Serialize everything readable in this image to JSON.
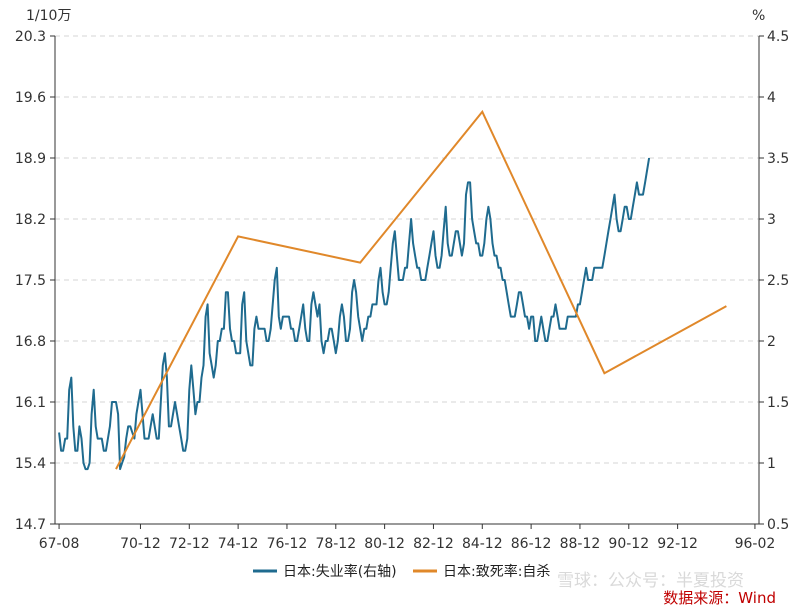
{
  "chart_data": {
    "type": "line",
    "units": {
      "left": "1/10万",
      "right": "%"
    },
    "x_tick_labels": [
      "67-08",
      "70-12",
      "72-12",
      "74-12",
      "76-12",
      "78-12",
      "80-12",
      "82-12",
      "84-12",
      "86-12",
      "88-12",
      "90-12",
      "92-12",
      "96-02"
    ],
    "x_tick_dates": [
      "1967-08",
      "1970-12",
      "1972-12",
      "1974-12",
      "1976-12",
      "1978-12",
      "1980-12",
      "1982-12",
      "1984-12",
      "1986-12",
      "1988-12",
      "1990-12",
      "1992-12",
      "1996-02"
    ],
    "xlim": [
      "1967-06",
      "1996-04"
    ],
    "left_axis": {
      "ticks": [
        "14.7",
        "15.4",
        "16.1",
        "16.8",
        "17.5",
        "18.2",
        "18.9",
        "19.6",
        "20.3"
      ],
      "ylim": [
        14.7,
        20.3
      ]
    },
    "right_axis": {
      "ticks": [
        "0.5",
        "1",
        "1.5",
        "2",
        "2.5",
        "3",
        "3.5",
        "4",
        "4.5"
      ],
      "ylim": [
        0.5,
        4.5
      ]
    },
    "grid": true,
    "legend": "bottom",
    "series": [
      {
        "name": "日本:失业率(右轴)",
        "axis": "right",
        "color": "#1f6b8f",
        "monthly_start": "1967-08",
        "values": [
          1.25,
          1.1,
          1.1,
          1.2,
          1.2,
          1.6,
          1.7,
          1.3,
          1.1,
          1.1,
          1.3,
          1.2,
          1.0,
          0.95,
          0.95,
          1.0,
          1.4,
          1.6,
          1.3,
          1.2,
          1.2,
          1.2,
          1.1,
          1.1,
          1.2,
          1.3,
          1.5,
          1.5,
          1.5,
          1.4,
          0.95,
          1.0,
          1.05,
          1.2,
          1.3,
          1.3,
          1.25,
          1.2,
          1.4,
          1.5,
          1.6,
          1.4,
          1.2,
          1.2,
          1.2,
          1.3,
          1.4,
          1.3,
          1.2,
          1.2,
          1.5,
          1.8,
          1.9,
          1.7,
          1.3,
          1.3,
          1.4,
          1.5,
          1.4,
          1.3,
          1.2,
          1.1,
          1.1,
          1.2,
          1.6,
          1.8,
          1.6,
          1.4,
          1.5,
          1.5,
          1.7,
          1.8,
          2.2,
          2.3,
          1.9,
          1.8,
          1.7,
          1.8,
          2.0,
          2.0,
          2.1,
          2.1,
          2.4,
          2.4,
          2.1,
          2.0,
          2.0,
          1.9,
          1.9,
          1.9,
          2.3,
          2.4,
          2.0,
          1.9,
          1.8,
          1.8,
          2.1,
          2.2,
          2.1,
          2.1,
          2.1,
          2.1,
          2.0,
          2.0,
          2.1,
          2.3,
          2.5,
          2.6,
          2.2,
          2.1,
          2.2,
          2.2,
          2.2,
          2.2,
          2.1,
          2.1,
          2.0,
          2.0,
          2.1,
          2.2,
          2.3,
          2.1,
          2.0,
          2.0,
          2.3,
          2.4,
          2.3,
          2.2,
          2.3,
          2.0,
          1.9,
          2.0,
          2.0,
          2.1,
          2.1,
          2.0,
          1.9,
          2.0,
          2.2,
          2.3,
          2.2,
          2.0,
          2.0,
          2.1,
          2.4,
          2.5,
          2.4,
          2.2,
          2.1,
          2.0,
          2.1,
          2.1,
          2.2,
          2.2,
          2.3,
          2.3,
          2.3,
          2.5,
          2.6,
          2.4,
          2.3,
          2.3,
          2.4,
          2.6,
          2.8,
          2.9,
          2.7,
          2.5,
          2.5,
          2.5,
          2.6,
          2.6,
          2.8,
          3.0,
          2.8,
          2.7,
          2.6,
          2.6,
          2.5,
          2.5,
          2.5,
          2.6,
          2.7,
          2.8,
          2.9,
          2.7,
          2.6,
          2.6,
          2.7,
          2.9,
          3.1,
          2.8,
          2.7,
          2.7,
          2.8,
          2.9,
          2.9,
          2.8,
          2.7,
          2.8,
          3.2,
          3.3,
          3.3,
          3.0,
          2.9,
          2.8,
          2.8,
          2.7,
          2.7,
          2.8,
          3.0,
          3.1,
          3.0,
          2.8,
          2.7,
          2.7,
          2.6,
          2.6,
          2.5,
          2.5,
          2.4,
          2.3,
          2.2,
          2.2,
          2.2,
          2.3,
          2.4,
          2.4,
          2.3,
          2.2,
          2.2,
          2.1,
          2.2,
          2.2,
          2.0,
          2.0,
          2.1,
          2.2,
          2.1,
          2.0,
          2.0,
          2.1,
          2.2,
          2.2,
          2.3,
          2.2,
          2.1,
          2.1,
          2.1,
          2.1,
          2.2,
          2.2,
          2.2,
          2.2,
          2.2,
          2.3,
          2.3,
          2.4,
          2.5,
          2.6,
          2.5,
          2.5,
          2.5,
          2.6,
          2.6,
          2.6,
          2.6,
          2.6,
          2.7,
          2.8,
          2.9,
          3.0,
          3.1,
          3.2,
          3.0,
          2.9,
          2.9,
          3.0,
          3.1,
          3.1,
          3.0,
          3.0,
          3.1,
          3.2,
          3.3,
          3.2,
          3.2,
          3.2,
          3.3,
          3.4,
          3.5
        ]
      },
      {
        "name": "日本:致死率:自杀",
        "axis": "left",
        "color": "#e0882a",
        "points": [
          {
            "x": "1969-12",
            "y": 15.33
          },
          {
            "x": "1974-12",
            "y": 18.0
          },
          {
            "x": "1979-12",
            "y": 17.7
          },
          {
            "x": "1984-12",
            "y": 19.43
          },
          {
            "x": "1989-12",
            "y": 16.43
          },
          {
            "x": "1994-12",
            "y": 17.2
          }
        ]
      }
    ]
  },
  "source": "数据来源：Wind",
  "watermark": "雪球：公众号：半夏投资"
}
